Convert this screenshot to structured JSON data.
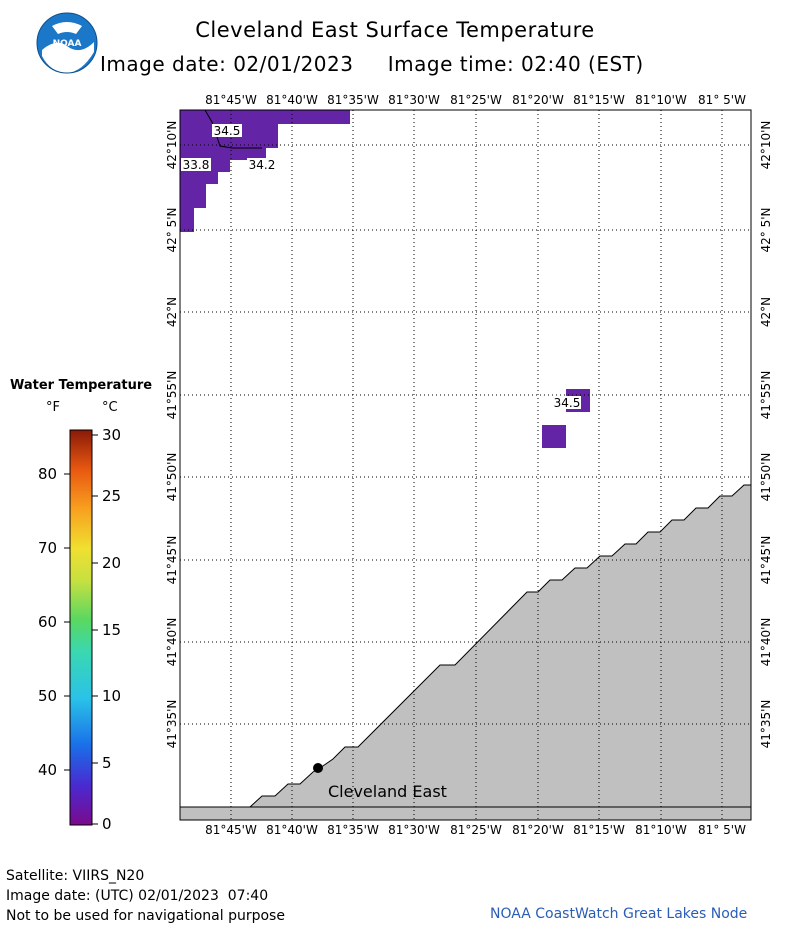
{
  "header": {
    "title": "Cleveland East Surface Temperature",
    "image_date_label": "Image date: 02/01/2023",
    "image_time_label": "Image time: 02:40 (EST)",
    "logo_text": "NOAA"
  },
  "map": {
    "lon_labels": [
      "81°45'W",
      "81°40'W",
      "81°35'W",
      "81°30'W",
      "81°25'W",
      "81°20'W",
      "81°15'W",
      "81°10'W",
      "81° 5'W"
    ],
    "lat_labels": [
      "42°10'N",
      "42° 5'N",
      "42°N",
      "41°55'N",
      "41°50'N",
      "41°45'N",
      "41°40'N",
      "41°35'N"
    ],
    "temperature_labels": [
      "34.5",
      "33.8",
      "34.2",
      "34.5"
    ],
    "city_label": "Cleveland East",
    "land_color": "#c0c0c0",
    "water_temp_color": "#6424a6"
  },
  "legend": {
    "title": "Water Temperature",
    "unit_f": "°F",
    "unit_c": "°C",
    "f_labels": [
      "80",
      "70",
      "60",
      "50",
      "40"
    ],
    "c_labels": [
      "30",
      "25",
      "20",
      "15",
      "10",
      "5",
      "0"
    ]
  },
  "footer": {
    "satellite": "Satellite: VIIRS_N20",
    "utc_date": "Image date: (UTC) 02/01/2023  07:40",
    "disclaimer": "Not to be used for navigational purpose",
    "credit": "NOAA CoastWatch Great Lakes Node"
  }
}
